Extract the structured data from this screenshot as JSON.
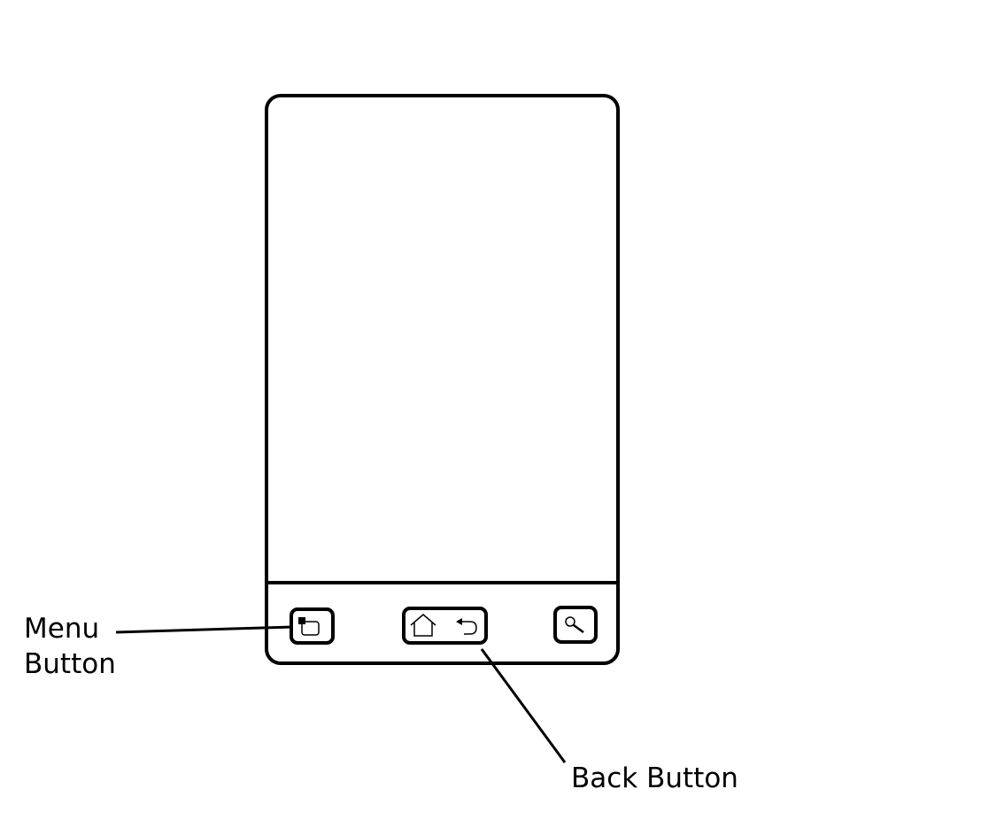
{
  "callouts": {
    "menu_line1": "Menu",
    "menu_line2": "Button",
    "back": "Back Button"
  },
  "icons": {
    "menu_button": "menu-icon",
    "home_button": "home-icon",
    "back_button": "back-arrow-icon",
    "search_button": "search-icon"
  },
  "colors": {
    "stroke": "#000000",
    "background": "#ffffff"
  }
}
